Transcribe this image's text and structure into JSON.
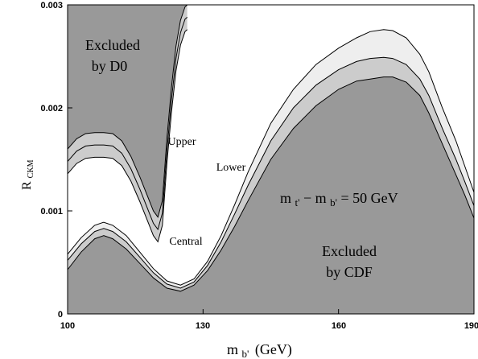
{
  "chart_data": {
    "type": "area",
    "title": "",
    "xlabel_main": "m",
    "xlabel_sub": "b'",
    "xlabel_unit": "(GeV)",
    "ylabel_main": "R",
    "ylabel_sub": "CKM",
    "xlim": [
      100,
      190
    ],
    "ylim": [
      0,
      0.003
    ],
    "x_ticks": [
      "100",
      "130",
      "160",
      "190"
    ],
    "y_ticks": [
      "0",
      "0.001",
      "0.002",
      "0.003"
    ],
    "grid": false,
    "annotations": {
      "d0_line1": "Excluded",
      "d0_line2": "by D0",
      "cdf_line1": "Excluded",
      "cdf_line2": "by CDF",
      "upper": "Upper",
      "lower": "Lower",
      "central": "Central",
      "mass_m1": "m",
      "mass_sub1": "t'",
      "mass_minus": " − ",
      "mass_m2": "m",
      "mass_sub2": "b'",
      "mass_value": " = 50 GeV"
    },
    "colors": {
      "excluded": "#999999",
      "band_mid": "#cccccc",
      "band_light": "#eeeeee",
      "background": "#ffffff",
      "line": "#000000"
    },
    "regions": {
      "excluded_d0": {
        "upper_y": [
          0.003,
          0.003
        ],
        "lower": {
          "x": [
            100,
            102,
            104,
            106,
            108,
            110,
            112,
            114,
            116,
            118,
            119,
            120,
            121,
            122,
            123,
            124,
            125,
            126,
            126.5
          ],
          "y": [
            0.0016,
            0.0017,
            0.00175,
            0.00176,
            0.00176,
            0.00175,
            0.00168,
            0.00153,
            0.00133,
            0.00111,
            0.001,
            0.00094,
            0.0011,
            0.0017,
            0.0022,
            0.0026,
            0.00285,
            0.00298,
            0.003
          ]
        }
      },
      "excluded_cdf": {
        "x": [
          100,
          103,
          106,
          108,
          110,
          113,
          116,
          119,
          122,
          125,
          128,
          131,
          134,
          137,
          140,
          145,
          150,
          155,
          160,
          164,
          167,
          170,
          172,
          175,
          178,
          180,
          183,
          186,
          188,
          190
        ],
        "y": [
          0.00043,
          0.0006,
          0.00073,
          0.00076,
          0.00073,
          0.00063,
          0.00049,
          0.00035,
          0.00025,
          0.00022,
          0.00028,
          0.00042,
          0.00062,
          0.00085,
          0.0011,
          0.0015,
          0.0018,
          0.00202,
          0.00218,
          0.00226,
          0.00228,
          0.0023,
          0.0023,
          0.00225,
          0.00212,
          0.00195,
          0.00165,
          0.00135,
          0.00115,
          0.00093
        ]
      },
      "bands": [
        {
          "label": "Central",
          "x": [
            100,
            103,
            106,
            108,
            110,
            113,
            116,
            119,
            122,
            125,
            128,
            131,
            134,
            137,
            140,
            145,
            150,
            155,
            160,
            164,
            167,
            170,
            172,
            175,
            178,
            180,
            183,
            186,
            188,
            190
          ],
          "y": [
            0.00052,
            0.00068,
            0.0008,
            0.00083,
            0.0008,
            0.0007,
            0.00055,
            0.0004,
            0.00029,
            0.00025,
            0.00031,
            0.00047,
            0.0007,
            0.00097,
            0.00125,
            0.00168,
            0.002,
            0.00222,
            0.00237,
            0.00245,
            0.00248,
            0.00249,
            0.00248,
            0.00242,
            0.00228,
            0.00212,
            0.0018,
            0.0015,
            0.00128,
            0.00105
          ]
        },
        {
          "label": "Upper",
          "x": [
            100,
            103,
            106,
            108,
            110,
            113,
            116,
            119,
            122,
            125,
            128,
            131,
            134,
            137,
            140,
            145,
            150,
            155,
            160,
            164,
            167,
            170,
            172,
            175,
            178,
            180,
            183,
            186,
            188,
            190
          ],
          "y": [
            0.00058,
            0.00074,
            0.00086,
            0.00089,
            0.00086,
            0.00076,
            0.0006,
            0.00044,
            0.00032,
            0.00028,
            0.00034,
            0.00051,
            0.00076,
            0.00106,
            0.00138,
            0.00185,
            0.00218,
            0.00242,
            0.00258,
            0.00268,
            0.00274,
            0.00276,
            0.00275,
            0.00268,
            0.00252,
            0.00235,
            0.002,
            0.00168,
            0.00143,
            0.00118
          ]
        }
      ]
    }
  }
}
